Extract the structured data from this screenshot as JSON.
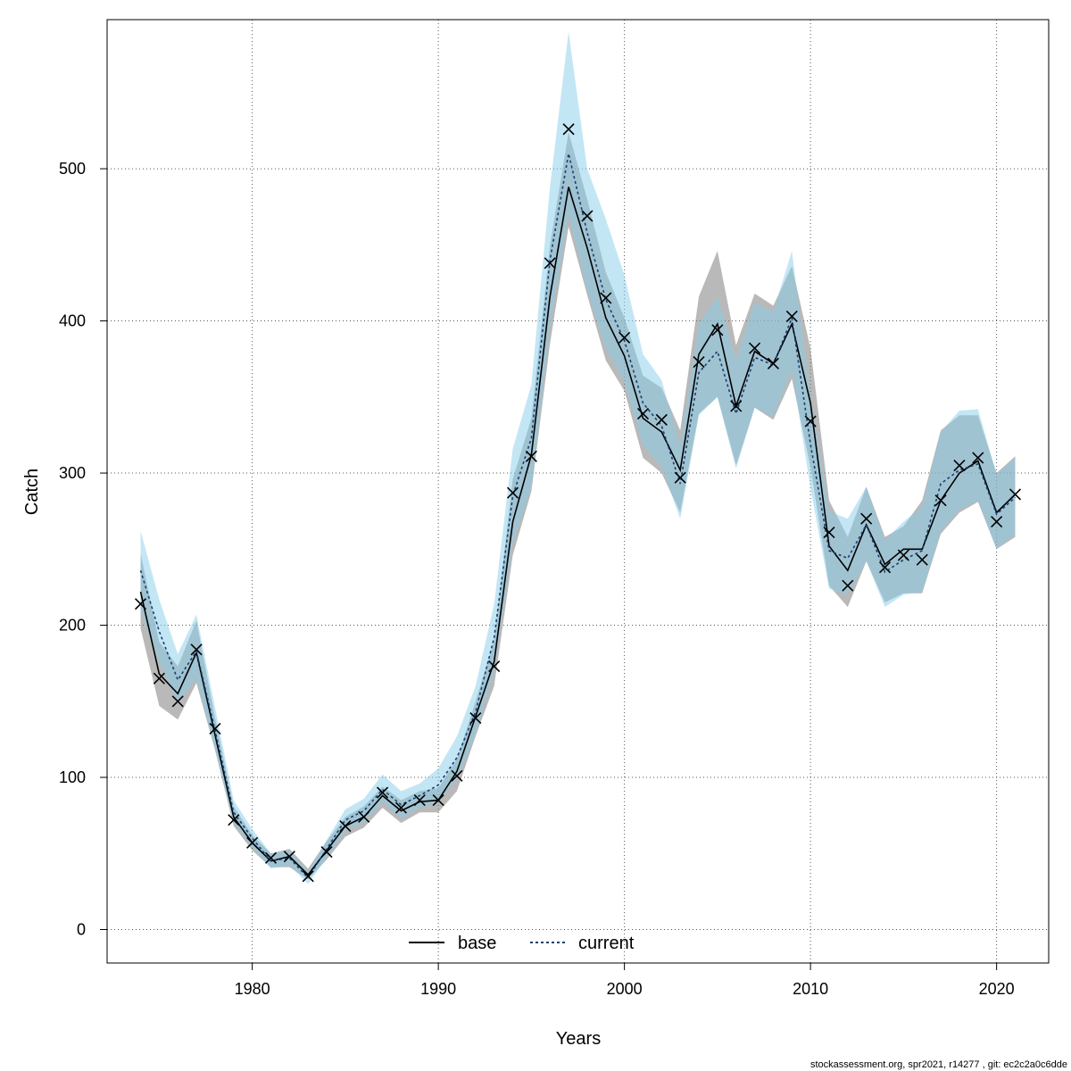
{
  "chart_data": {
    "type": "line",
    "xlabel": "Years",
    "ylabel": "Catch",
    "xlim": [
      1972.2,
      2022.8
    ],
    "ylim": [
      -22,
      598
    ],
    "x_ticks": [
      1980,
      1990,
      2000,
      2010,
      2020
    ],
    "y_ticks": [
      0,
      100,
      200,
      300,
      400,
      500
    ],
    "grid": true,
    "legend_position": "bottom-center",
    "x": [
      1974,
      1975,
      1976,
      1977,
      1978,
      1979,
      1980,
      1981,
      1982,
      1983,
      1984,
      1985,
      1986,
      1987,
      1988,
      1989,
      1990,
      1991,
      1992,
      1993,
      1994,
      1995,
      1996,
      1997,
      1998,
      1999,
      2000,
      2001,
      2002,
      2003,
      2004,
      2005,
      2006,
      2007,
      2008,
      2009,
      2010,
      2011,
      2012,
      2013,
      2014,
      2015,
      2016,
      2017,
      2018,
      2019,
      2020,
      2021
    ],
    "observed": [
      214,
      165,
      150,
      184,
      132,
      72,
      57,
      47,
      48,
      35,
      51,
      68,
      74,
      90,
      80,
      85,
      85,
      101,
      139,
      173,
      287,
      311,
      438,
      526,
      469,
      415,
      389,
      339,
      335,
      297,
      373,
      394,
      344,
      382,
      372,
      403,
      334,
      261,
      226,
      270,
      238,
      246,
      243,
      282,
      305,
      310,
      268,
      286
    ],
    "series": [
      {
        "name": "base",
        "color": "#000000",
        "band_color": "#808080",
        "values": [
          222,
          168,
          155,
          182,
          128,
          74,
          57,
          45,
          48,
          36,
          52,
          68,
          74,
          88,
          78,
          84,
          85,
          104,
          140,
          176,
          268,
          312,
          416,
          488,
          448,
          402,
          377,
          336,
          327,
          302,
          378,
          398,
          344,
          380,
          372,
          398,
          346,
          252,
          236,
          266,
          240,
          250,
          250,
          282,
          300,
          308,
          274,
          286
        ],
        "lower": [
          198,
          147,
          138,
          162,
          118,
          68,
          52,
          41,
          41,
          33,
          46,
          61,
          67,
          80,
          70,
          77,
          77,
          91,
          127,
          160,
          246,
          288,
          385,
          462,
          417,
          374,
          354,
          310,
          300,
          274,
          339,
          350,
          305,
          343,
          335,
          362,
          304,
          226,
          212,
          242,
          215,
          221,
          221,
          260,
          274,
          281,
          250,
          258
        ],
        "upper": [
          247,
          189,
          173,
          203,
          139,
          81,
          62,
          50,
          53,
          40,
          58,
          74,
          81,
          94,
          85,
          91,
          93,
          112,
          150,
          190,
          296,
          336,
          450,
          524,
          480,
          432,
          402,
          364,
          356,
          328,
          416,
          446,
          384,
          418,
          410,
          436,
          382,
          282,
          258,
          291,
          258,
          265,
          282,
          328,
          338,
          338,
          300,
          311
        ]
      },
      {
        "name": "current",
        "color": "#1a3f6f",
        "band_color": "#87CEEB",
        "values": [
          236,
          196,
          164,
          183,
          131,
          77,
          60,
          45,
          47,
          34,
          53,
          72,
          78,
          92,
          82,
          88,
          95,
          113,
          143,
          192,
          285,
          323,
          440,
          510,
          458,
          414,
          387,
          346,
          331,
          293,
          366,
          380,
          339,
          376,
          371,
          402,
          319,
          249,
          244,
          266,
          235,
          243,
          249,
          293,
          302,
          306,
          273,
          284
        ],
        "lower": [
          210,
          176,
          149,
          165,
          118,
          70,
          54,
          40,
          42,
          30,
          47,
          65,
          70,
          84,
          73,
          80,
          84,
          99,
          128,
          170,
          254,
          290,
          396,
          470,
          420,
          382,
          360,
          318,
          304,
          270,
          338,
          350,
          303,
          343,
          337,
          368,
          290,
          224,
          220,
          242,
          212,
          220,
          222,
          262,
          276,
          282,
          250,
          260
        ],
        "upper": [
          262,
          217,
          181,
          207,
          146,
          85,
          66,
          50,
          52,
          38,
          59,
          79,
          86,
          102,
          91,
          96,
          106,
          127,
          160,
          214,
          316,
          358,
          488,
          590,
          500,
          467,
          430,
          378,
          361,
          318,
          398,
          416,
          375,
          412,
          406,
          446,
          350,
          275,
          270,
          291,
          256,
          268,
          278,
          327,
          341,
          342,
          299,
          310
        ]
      }
    ]
  },
  "footer": "stockassessment.org, spr2021, r14277 , git: ec2c2a0c6dde"
}
